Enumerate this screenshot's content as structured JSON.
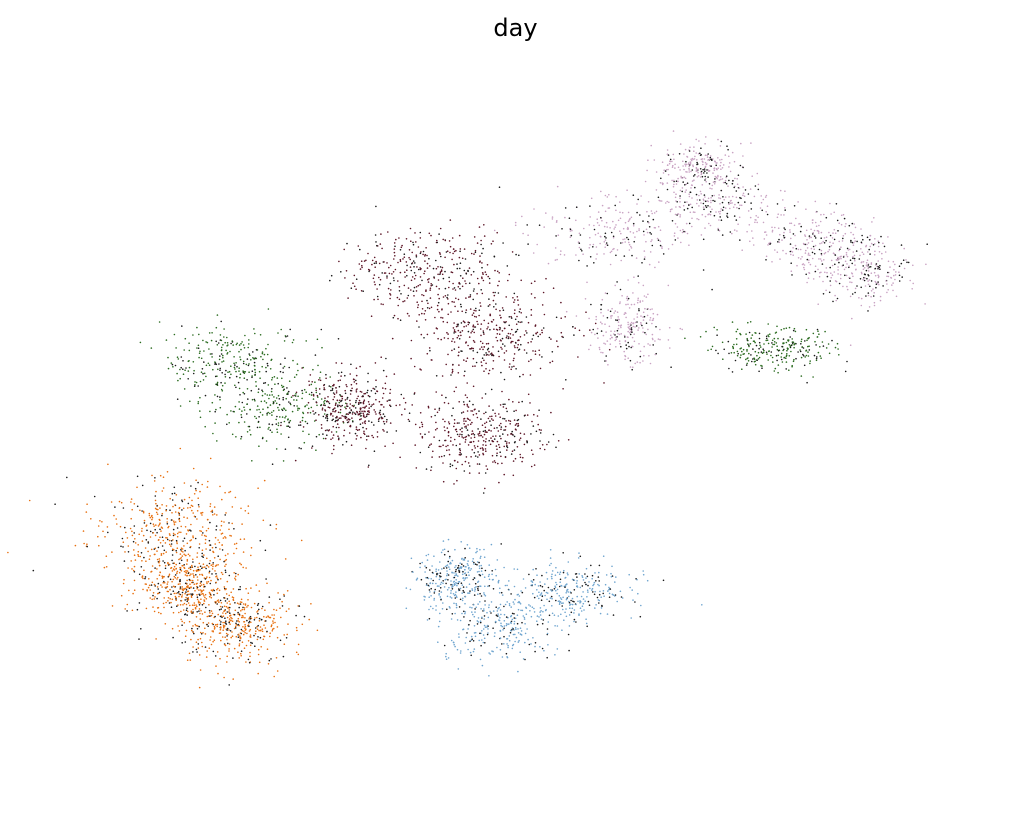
{
  "chart_data": {
    "type": "scatter",
    "title": "day",
    "xlabel": "",
    "ylabel": "",
    "axes_visible": false,
    "grid": false,
    "legend": "none",
    "xlim": [
      0,
      100
    ],
    "ylim": [
      0,
      100
    ],
    "point_size": 1,
    "dark_overlay_color": "#1a1a1a",
    "groups": [
      {
        "color": "#e8700f",
        "count": 1300,
        "regions": [
          [
            12,
            34,
            8,
            7
          ],
          [
            19,
            20,
            6,
            5
          ],
          [
            14,
            26,
            5,
            5
          ]
        ]
      },
      {
        "color": "#2a6b1f",
        "count": 800,
        "regions": [
          [
            19,
            59,
            7,
            5
          ],
          [
            24,
            52,
            7,
            5
          ],
          [
            78,
            61,
            6,
            3
          ]
        ]
      },
      {
        "color": "#6fa5cf",
        "count": 900,
        "regions": [
          [
            48,
            20,
            6,
            5
          ],
          [
            56,
            25,
            6,
            4
          ],
          [
            43,
            27,
            4,
            4
          ]
        ]
      },
      {
        "color": "#5c1526",
        "count": 1500,
        "regions": [
          [
            40,
            72,
            8,
            6
          ],
          [
            47,
            63,
            8,
            6
          ],
          [
            46,
            48,
            6,
            5
          ],
          [
            32,
            52,
            5,
            5
          ]
        ]
      },
      {
        "color": "#c9a3c3",
        "count": 1400,
        "regions": [
          [
            60,
            78,
            8,
            5
          ],
          [
            72,
            82,
            7,
            4
          ],
          [
            83,
            77,
            6,
            4
          ],
          [
            88,
            72,
            5,
            4
          ],
          [
            70,
            88,
            4,
            3
          ],
          [
            62,
            64,
            4,
            5
          ]
        ]
      }
    ]
  }
}
